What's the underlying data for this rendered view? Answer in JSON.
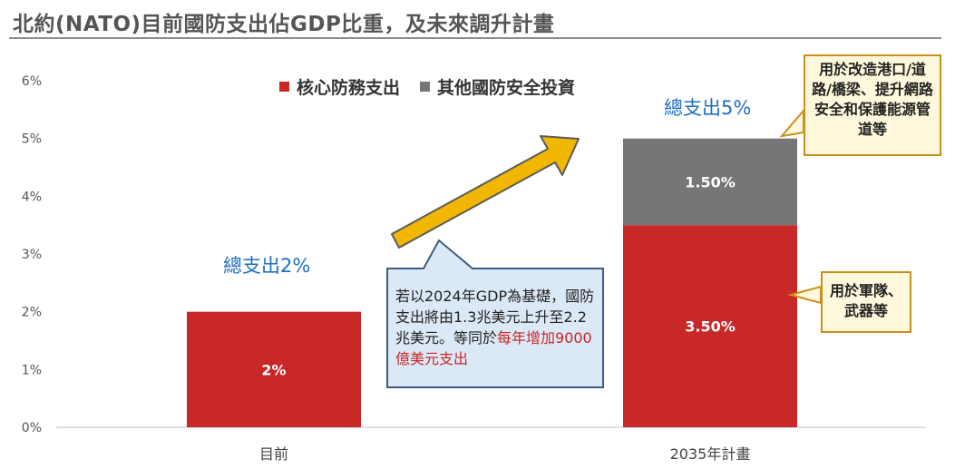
{
  "title": "北約(NATO)目前國防支出佔GDP比重，及未來調升計畫",
  "legend": [
    {
      "label": "核心防務支出",
      "color": "#c82828"
    },
    {
      "label": "其他國防安全投資",
      "color": "#767676"
    }
  ],
  "totals": {
    "current": "總支出2%",
    "plan": "總支出5%"
  },
  "note": {
    "main": "若以2024年GDP為基礎，國防支出將由1.3兆美元上升至2.2兆美元。等同於",
    "highlight": "每年增加9000億美元支出"
  },
  "callouts": {
    "other": "用於改造港口/道路/橋梁、提升網路安全和保護能源管道等",
    "core": "用於軍隊、武器等"
  },
  "arrow_icon": "arrow-up-right-icon",
  "chart_data": {
    "type": "bar",
    "stacked": true,
    "categories": [
      "目前",
      "2035年計畫"
    ],
    "series": [
      {
        "name": "核心防務支出",
        "values": [
          2,
          3.5
        ],
        "labels": [
          "2%",
          "3.50%"
        ],
        "color": "#c82828"
      },
      {
        "name": "其他國防安全投資",
        "values": [
          0,
          1.5
        ],
        "labels": [
          "",
          "1.50%"
        ],
        "color": "#767676"
      }
    ],
    "ylim": [
      0,
      6
    ],
    "yticks": [
      "0%",
      "1%",
      "2%",
      "3%",
      "4%",
      "5%",
      "6%"
    ],
    "grid": false,
    "legend_position": "top"
  }
}
